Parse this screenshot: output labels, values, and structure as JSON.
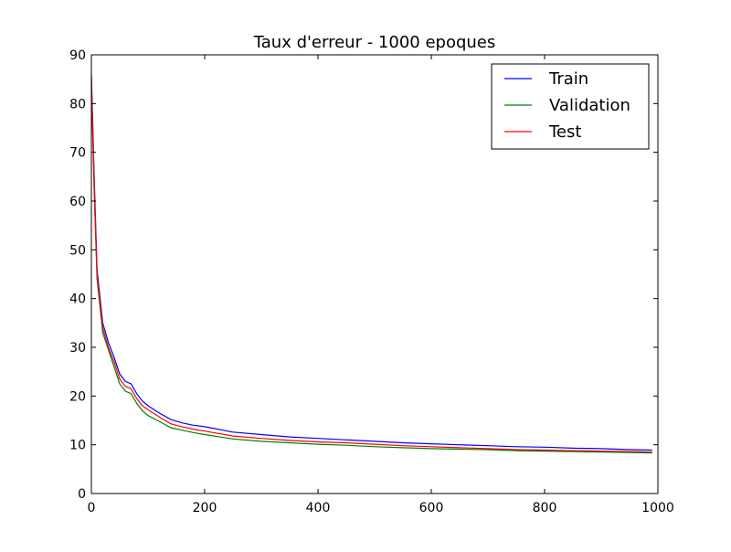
{
  "chart_data": {
    "type": "line",
    "title": "Taux d'erreur - 1000 epoques",
    "xlabel": "",
    "ylabel": "",
    "xlim": [
      0,
      1000
    ],
    "ylim": [
      0,
      90
    ],
    "xticks": [
      0,
      200,
      400,
      600,
      800,
      1000
    ],
    "yticks": [
      0,
      10,
      20,
      30,
      40,
      50,
      60,
      70,
      80,
      90
    ],
    "grid": false,
    "legend_position": "top-right",
    "x": [
      0,
      5,
      10,
      20,
      30,
      40,
      50,
      60,
      70,
      80,
      90,
      100,
      120,
      140,
      160,
      180,
      200,
      250,
      300,
      350,
      400,
      450,
      500,
      550,
      600,
      650,
      700,
      750,
      800,
      850,
      900,
      950,
      990
    ],
    "series": [
      {
        "name": "Train",
        "color": "#0000ff",
        "values": [
          86,
          65,
          46,
          35,
          31,
          28,
          24.5,
          23,
          22.5,
          20.5,
          19,
          18,
          16.5,
          15.2,
          14.5,
          14,
          13.7,
          12.6,
          12.1,
          11.6,
          11.3,
          11.0,
          10.7,
          10.4,
          10.2,
          10.0,
          9.8,
          9.6,
          9.5,
          9.3,
          9.2,
          9.0,
          8.9
        ]
      },
      {
        "name": "Validation",
        "color": "#008000",
        "values": [
          84,
          62,
          44,
          33,
          29.5,
          26,
          22.5,
          21,
          20.5,
          18.5,
          17,
          16,
          14.8,
          13.5,
          13,
          12.5,
          12.1,
          11.2,
          10.7,
          10.4,
          10.1,
          9.9,
          9.6,
          9.4,
          9.2,
          9.1,
          9.0,
          8.8,
          8.7,
          8.6,
          8.5,
          8.4,
          8.3
        ]
      },
      {
        "name": "Test",
        "color": "#ff0000",
        "values": [
          85,
          63,
          45,
          34,
          30,
          27,
          23.5,
          22,
          21.5,
          19.5,
          18,
          17.2,
          15.7,
          14.3,
          13.7,
          13.2,
          12.8,
          11.8,
          11.3,
          10.9,
          10.6,
          10.4,
          10.1,
          9.8,
          9.6,
          9.4,
          9.2,
          9.0,
          8.9,
          8.8,
          8.7,
          8.6,
          8.5
        ]
      }
    ]
  }
}
